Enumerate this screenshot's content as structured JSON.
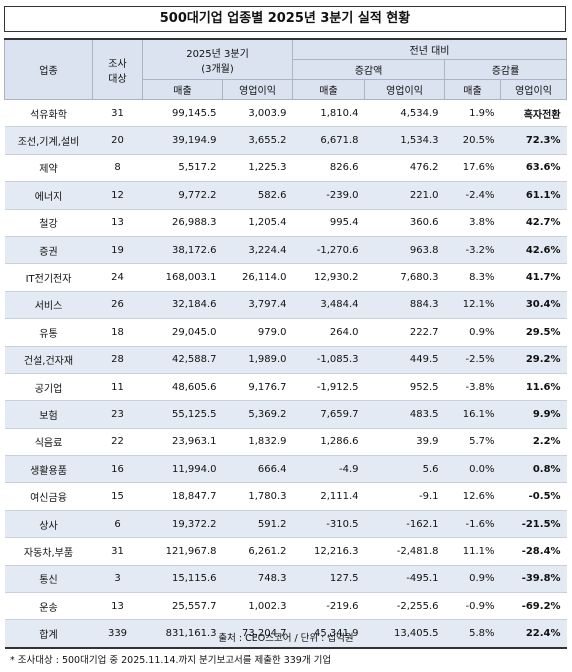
{
  "title": "500대기업 업종별 2025년 3분기 실적 현황",
  "headers": {
    "industry": "업종",
    "companies_line1": "조사",
    "companies_line2": "대상",
    "q3_line1": "2025년 3분기",
    "q3_line2": "(3개월)",
    "yoy": "전년 대비",
    "change_amount": "증감액",
    "change_rate": "증감률",
    "sales": "매출",
    "op_profit": "영업이익"
  },
  "rows": [
    {
      "industry": "석유화학",
      "companies": "31",
      "sales": "99,145.5",
      "op": "3,003.9",
      "d_sales": "1,810.4",
      "d_op": "4,534.9",
      "r_sales": "1.9%",
      "r_op": "흑자전환"
    },
    {
      "industry": "조선,기계,설비",
      "companies": "20",
      "sales": "39,194.9",
      "op": "3,655.2",
      "d_sales": "6,671.8",
      "d_op": "1,534.3",
      "r_sales": "20.5%",
      "r_op": "72.3%"
    },
    {
      "industry": "제약",
      "companies": "8",
      "sales": "5,517.2",
      "op": "1,225.3",
      "d_sales": "826.6",
      "d_op": "476.2",
      "r_sales": "17.6%",
      "r_op": "63.6%"
    },
    {
      "industry": "에너지",
      "companies": "12",
      "sales": "9,772.2",
      "op": "582.6",
      "d_sales": "-239.0",
      "d_op": "221.0",
      "r_sales": "-2.4%",
      "r_op": "61.1%"
    },
    {
      "industry": "철강",
      "companies": "13",
      "sales": "26,988.3",
      "op": "1,205.4",
      "d_sales": "995.4",
      "d_op": "360.6",
      "r_sales": "3.8%",
      "r_op": "42.7%"
    },
    {
      "industry": "증권",
      "companies": "19",
      "sales": "38,172.6",
      "op": "3,224.4",
      "d_sales": "-1,270.6",
      "d_op": "963.8",
      "r_sales": "-3.2%",
      "r_op": "42.6%"
    },
    {
      "industry": "IT전기전자",
      "companies": "24",
      "sales": "168,003.1",
      "op": "26,114.0",
      "d_sales": "12,930.2",
      "d_op": "7,680.3",
      "r_sales": "8.3%",
      "r_op": "41.7%"
    },
    {
      "industry": "서비스",
      "companies": "26",
      "sales": "32,184.6",
      "op": "3,797.4",
      "d_sales": "3,484.4",
      "d_op": "884.3",
      "r_sales": "12.1%",
      "r_op": "30.4%"
    },
    {
      "industry": "유통",
      "companies": "18",
      "sales": "29,045.0",
      "op": "979.0",
      "d_sales": "264.0",
      "d_op": "222.7",
      "r_sales": "0.9%",
      "r_op": "29.5%"
    },
    {
      "industry": "건설,건자재",
      "companies": "28",
      "sales": "42,588.7",
      "op": "1,989.0",
      "d_sales": "-1,085.3",
      "d_op": "449.5",
      "r_sales": "-2.5%",
      "r_op": "29.2%"
    },
    {
      "industry": "공기업",
      "companies": "11",
      "sales": "48,605.6",
      "op": "9,176.7",
      "d_sales": "-1,912.5",
      "d_op": "952.5",
      "r_sales": "-3.8%",
      "r_op": "11.6%"
    },
    {
      "industry": "보험",
      "companies": "23",
      "sales": "55,125.5",
      "op": "5,369.2",
      "d_sales": "7,659.7",
      "d_op": "483.5",
      "r_sales": "16.1%",
      "r_op": "9.9%"
    },
    {
      "industry": "식음료",
      "companies": "22",
      "sales": "23,963.1",
      "op": "1,832.9",
      "d_sales": "1,286.6",
      "d_op": "39.9",
      "r_sales": "5.7%",
      "r_op": "2.2%"
    },
    {
      "industry": "생활용품",
      "companies": "16",
      "sales": "11,994.0",
      "op": "666.4",
      "d_sales": "-4.9",
      "d_op": "5.6",
      "r_sales": "0.0%",
      "r_op": "0.8%"
    },
    {
      "industry": "여신금융",
      "companies": "15",
      "sales": "18,847.7",
      "op": "1,780.3",
      "d_sales": "2,111.4",
      "d_op": "-9.1",
      "r_sales": "12.6%",
      "r_op": "-0.5%"
    },
    {
      "industry": "상사",
      "companies": "6",
      "sales": "19,372.2",
      "op": "591.2",
      "d_sales": "-310.5",
      "d_op": "-162.1",
      "r_sales": "-1.6%",
      "r_op": "-21.5%"
    },
    {
      "industry": "자동차,부품",
      "companies": "31",
      "sales": "121,967.8",
      "op": "6,261.2",
      "d_sales": "12,216.3",
      "d_op": "-2,481.8",
      "r_sales": "11.1%",
      "r_op": "-28.4%"
    },
    {
      "industry": "통신",
      "companies": "3",
      "sales": "15,115.6",
      "op": "748.3",
      "d_sales": "127.5",
      "d_op": "-495.1",
      "r_sales": "0.9%",
      "r_op": "-39.8%"
    },
    {
      "industry": "운송",
      "companies": "13",
      "sales": "25,557.7",
      "op": "1,002.3",
      "d_sales": "-219.6",
      "d_op": "-2,255.6",
      "r_sales": "-0.9%",
      "r_op": "-69.2%"
    },
    {
      "industry": "합계",
      "companies": "339",
      "sales": "831,161.3",
      "op": "73,204.7",
      "d_sales": "45,341.9",
      "d_op": "13,405.5",
      "r_sales": "5.8%",
      "r_op": "22.4%"
    }
  ],
  "source": "출처 : CEO스코어 / 단위 : 십억원",
  "note": "* 조사대상 : 500대기업 중 2025.11.14.까지 분기보고서를 제출한 339개 기업"
}
